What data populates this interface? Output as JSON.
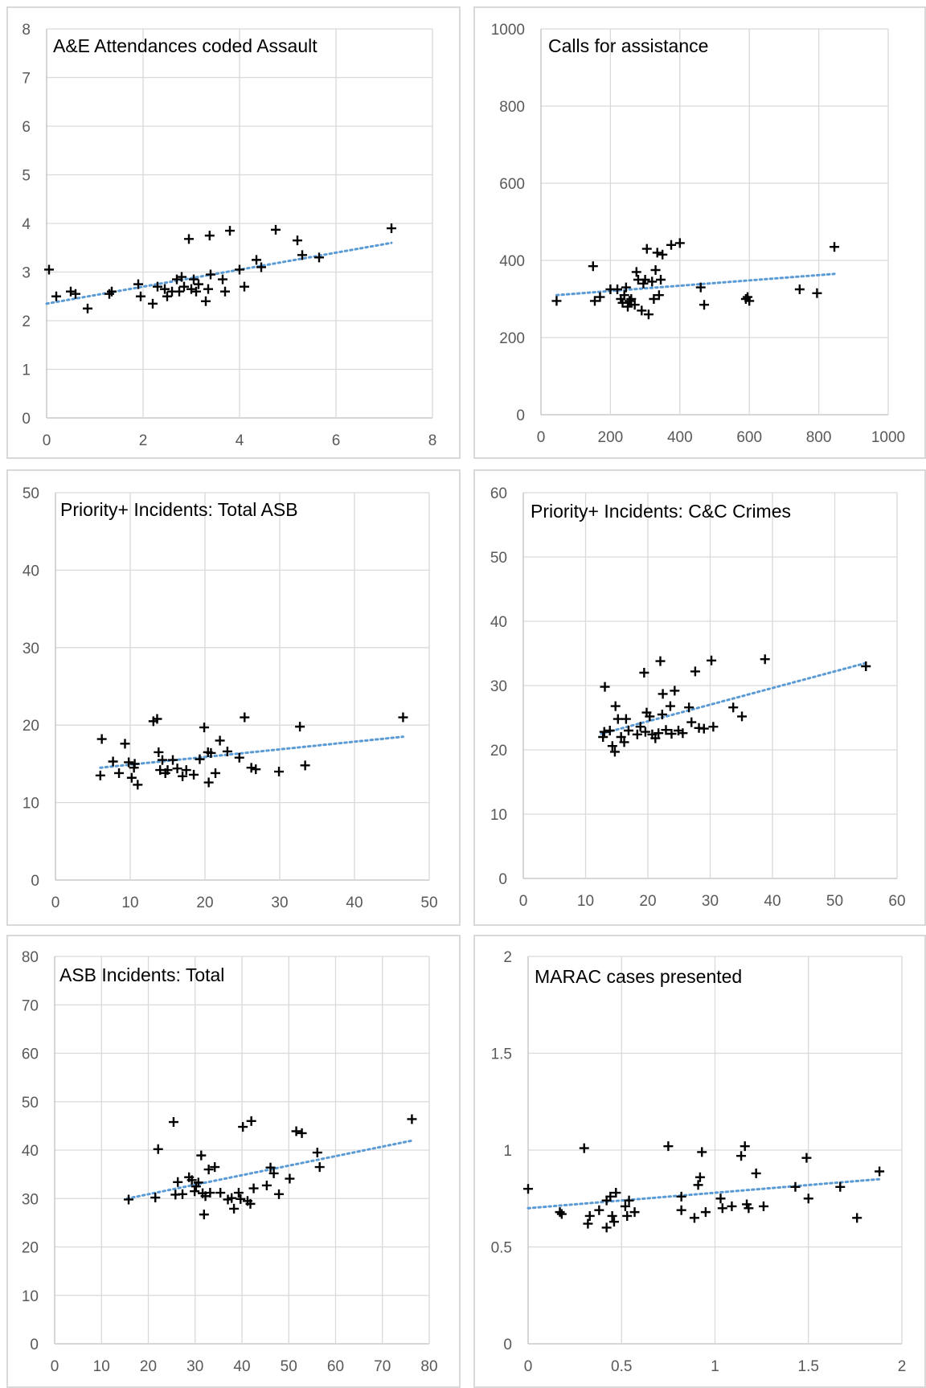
{
  "chart_data": [
    {
      "type": "scatter",
      "title": "A&E Attendances coded Assault",
      "xlim": [
        0,
        8
      ],
      "ylim": [
        0,
        8
      ],
      "xticks": [
        "0",
        "2",
        "4",
        "6",
        "8"
      ],
      "yticks": [
        "0",
        "1",
        "2",
        "3",
        "4",
        "5",
        "6",
        "7",
        "8"
      ],
      "grid": true,
      "trendline": {
        "x": [
          0,
          7.15
        ],
        "y": [
          2.35,
          3.6
        ]
      },
      "points": [
        [
          0.05,
          3.05
        ],
        [
          0.2,
          2.5
        ],
        [
          0.5,
          2.6
        ],
        [
          0.6,
          2.55
        ],
        [
          0.85,
          2.25
        ],
        [
          1.3,
          2.55
        ],
        [
          1.35,
          2.6
        ],
        [
          1.9,
          2.75
        ],
        [
          1.95,
          2.5
        ],
        [
          2.2,
          2.35
        ],
        [
          2.3,
          2.7
        ],
        [
          2.45,
          2.65
        ],
        [
          2.5,
          2.5
        ],
        [
          2.6,
          2.6
        ],
        [
          2.7,
          2.85
        ],
        [
          2.75,
          2.6
        ],
        [
          2.8,
          2.9
        ],
        [
          2.85,
          2.7
        ],
        [
          2.95,
          3.68
        ],
        [
          3.0,
          2.65
        ],
        [
          3.05,
          2.85
        ],
        [
          3.1,
          2.6
        ],
        [
          3.15,
          2.75
        ],
        [
          3.3,
          2.4
        ],
        [
          3.35,
          2.65
        ],
        [
          3.4,
          2.95
        ],
        [
          3.38,
          3.75
        ],
        [
          3.65,
          2.85
        ],
        [
          3.7,
          2.6
        ],
        [
          3.8,
          3.85
        ],
        [
          4.0,
          3.05
        ],
        [
          4.1,
          2.7
        ],
        [
          4.35,
          3.25
        ],
        [
          4.45,
          3.1
        ],
        [
          4.75,
          3.87
        ],
        [
          5.2,
          3.65
        ],
        [
          5.3,
          3.35
        ],
        [
          5.65,
          3.3
        ],
        [
          7.15,
          3.9
        ]
      ]
    },
    {
      "type": "scatter",
      "title": "Calls for assistance",
      "xlim": [
        0,
        1000
      ],
      "ylim": [
        0,
        1000
      ],
      "xticks": [
        "0",
        "200",
        "400",
        "600",
        "800",
        "1000"
      ],
      "yticks": [
        "0",
        "200",
        "400",
        "600",
        "800",
        "1000"
      ],
      "grid": true,
      "trendline": {
        "x": [
          45,
          845
        ],
        "y": [
          310,
          365
        ]
      },
      "points": [
        [
          45,
          295
        ],
        [
          150,
          385
        ],
        [
          155,
          295
        ],
        [
          170,
          305
        ],
        [
          200,
          325
        ],
        [
          220,
          325
        ],
        [
          230,
          300
        ],
        [
          235,
          290
        ],
        [
          240,
          310
        ],
        [
          245,
          330
        ],
        [
          250,
          280
        ],
        [
          255,
          295
        ],
        [
          260,
          300
        ],
        [
          270,
          285
        ],
        [
          275,
          370
        ],
        [
          280,
          350
        ],
        [
          290,
          270
        ],
        [
          295,
          340
        ],
        [
          300,
          350
        ],
        [
          305,
          430
        ],
        [
          310,
          260
        ],
        [
          320,
          345
        ],
        [
          325,
          300
        ],
        [
          330,
          375
        ],
        [
          335,
          420
        ],
        [
          340,
          310
        ],
        [
          345,
          350
        ],
        [
          350,
          415
        ],
        [
          375,
          440
        ],
        [
          400,
          445
        ],
        [
          460,
          330
        ],
        [
          470,
          285
        ],
        [
          590,
          300
        ],
        [
          595,
          305
        ],
        [
          600,
          295
        ],
        [
          745,
          325
        ],
        [
          795,
          315
        ],
        [
          845,
          435
        ]
      ]
    },
    {
      "type": "scatter",
      "title": "Priority+ Incidents: Total ASB",
      "xlim": [
        0,
        50
      ],
      "ylim": [
        0,
        50
      ],
      "xticks": [
        "0",
        "10",
        "20",
        "30",
        "40",
        "50"
      ],
      "yticks": [
        "0",
        "10",
        "20",
        "30",
        "40",
        "50"
      ],
      "grid": true,
      "trendline": {
        "x": [
          6,
          46.5
        ],
        "y": [
          14.5,
          18.5
        ]
      },
      "points": [
        [
          6,
          13.5
        ],
        [
          6.2,
          18.2
        ],
        [
          7.7,
          15.3
        ],
        [
          8.5,
          13.8
        ],
        [
          9.3,
          17.6
        ],
        [
          9.8,
          15.2
        ],
        [
          10.2,
          13.2
        ],
        [
          10.5,
          14.5
        ],
        [
          10.6,
          15
        ],
        [
          11,
          12.3
        ],
        [
          13.1,
          20.5
        ],
        [
          13.6,
          20.8
        ],
        [
          13.8,
          16.5
        ],
        [
          14,
          14.2
        ],
        [
          14.3,
          15.5
        ],
        [
          14.7,
          13.8
        ],
        [
          15,
          14.2
        ],
        [
          15.7,
          15.5
        ],
        [
          16.3,
          14.4
        ],
        [
          17,
          13.4
        ],
        [
          17.5,
          14.2
        ],
        [
          18.5,
          13.6
        ],
        [
          19.3,
          15.6
        ],
        [
          19.9,
          19.7
        ],
        [
          20.4,
          16.5
        ],
        [
          20.5,
          12.6
        ],
        [
          20.8,
          16.4
        ],
        [
          21.4,
          13.8
        ],
        [
          22,
          18
        ],
        [
          23,
          16.6
        ],
        [
          24.6,
          15.8
        ],
        [
          25.3,
          21
        ],
        [
          26.2,
          14.5
        ],
        [
          26.8,
          14.3
        ],
        [
          29.9,
          14
        ],
        [
          32.7,
          19.8
        ],
        [
          33.4,
          14.8
        ],
        [
          46.5,
          21
        ]
      ]
    },
    {
      "type": "scatter",
      "title": "Priority+ Incidents: C&C Crimes",
      "xlim": [
        0,
        60
      ],
      "ylim": [
        0,
        60
      ],
      "xticks": [
        "0",
        "10",
        "20",
        "30",
        "40",
        "50",
        "60"
      ],
      "yticks": [
        "0",
        "10",
        "20",
        "30",
        "40",
        "50",
        "60"
      ],
      "grid": true,
      "trendline": {
        "x": [
          12.5,
          55
        ],
        "y": [
          22.5,
          33.5
        ]
      },
      "points": [
        [
          12.8,
          22
        ],
        [
          13,
          22.8
        ],
        [
          13.1,
          29.8
        ],
        [
          13.9,
          23
        ],
        [
          14.3,
          20.6
        ],
        [
          14.7,
          19.7
        ],
        [
          14.8,
          26.8
        ],
        [
          15.2,
          24.8
        ],
        [
          15.7,
          22
        ],
        [
          16.2,
          21.2
        ],
        [
          16.5,
          24.8
        ],
        [
          16.9,
          23
        ],
        [
          18.3,
          22.4
        ],
        [
          18.8,
          23.6
        ],
        [
          19.4,
          32
        ],
        [
          19.6,
          22.8
        ],
        [
          19.8,
          25.8
        ],
        [
          20.3,
          25.2
        ],
        [
          20.7,
          22.4
        ],
        [
          21.2,
          21.8
        ],
        [
          21.7,
          22.6
        ],
        [
          22,
          33.8
        ],
        [
          22.3,
          25.5
        ],
        [
          22.4,
          28.7
        ],
        [
          22.9,
          23.1
        ],
        [
          23.6,
          26.8
        ],
        [
          23.8,
          22.5
        ],
        [
          24.3,
          29.2
        ],
        [
          24.9,
          23
        ],
        [
          25.6,
          22.6
        ],
        [
          26.6,
          26.6
        ],
        [
          27,
          24.3
        ],
        [
          27.6,
          32.2
        ],
        [
          28.2,
          23.4
        ],
        [
          29,
          23.3
        ],
        [
          30.2,
          33.9
        ],
        [
          30.5,
          23.6
        ],
        [
          33.7,
          26.6
        ],
        [
          35.1,
          25.2
        ],
        [
          38.8,
          34.1
        ],
        [
          55,
          33
        ]
      ]
    },
    {
      "type": "scatter",
      "title": "ASB Incidents: Total",
      "xlim": [
        0,
        80
      ],
      "ylim": [
        0,
        80
      ],
      "xticks": [
        "0",
        "10",
        "20",
        "30",
        "40",
        "50",
        "60",
        "70",
        "80"
      ],
      "yticks": [
        "0",
        "10",
        "20",
        "30",
        "40",
        "50",
        "60",
        "70",
        "80"
      ],
      "grid": true,
      "trendline": {
        "x": [
          15.5,
          76.5
        ],
        "y": [
          30,
          42
        ]
      },
      "points": [
        [
          15.8,
          29.8
        ],
        [
          21.5,
          30.2
        ],
        [
          22.1,
          40.2
        ],
        [
          25.4,
          45.8
        ],
        [
          25.8,
          30.8
        ],
        [
          26.3,
          33.4
        ],
        [
          27.3,
          30.9
        ],
        [
          28.7,
          34.4
        ],
        [
          29.3,
          33.8
        ],
        [
          29.9,
          31.5
        ],
        [
          30.2,
          32.5
        ],
        [
          30.7,
          33.3
        ],
        [
          31.3,
          38.9
        ],
        [
          31.6,
          31.1
        ],
        [
          31.9,
          26.7
        ],
        [
          32.2,
          30.5
        ],
        [
          32.9,
          36
        ],
        [
          33.2,
          31.2
        ],
        [
          34.2,
          36.5
        ],
        [
          35.4,
          31.2
        ],
        [
          37,
          29.8
        ],
        [
          37.8,
          30.1
        ],
        [
          38.3,
          27.9
        ],
        [
          39.3,
          31.2
        ],
        [
          39.7,
          29.9
        ],
        [
          40.2,
          44.8
        ],
        [
          41.2,
          29.5
        ],
        [
          41.8,
          28.9
        ],
        [
          42,
          46
        ],
        [
          42.5,
          32.1
        ],
        [
          45.3,
          32.7
        ],
        [
          46.1,
          36.4
        ],
        [
          46.8,
          35.2
        ],
        [
          47.9,
          30.9
        ],
        [
          50.2,
          34.1
        ],
        [
          51.6,
          43.9
        ],
        [
          52.8,
          43.5
        ],
        [
          56.1,
          39.5
        ],
        [
          56.6,
          36.5
        ],
        [
          76.3,
          46.4
        ]
      ]
    },
    {
      "type": "scatter",
      "title": "MARAC cases presented",
      "xlim": [
        0,
        2
      ],
      "ylim": [
        0,
        2
      ],
      "xticks": [
        "0",
        "0.5",
        "1",
        "1.5",
        "2"
      ],
      "yticks": [
        "0",
        "0.5",
        "1",
        "1.5",
        "2"
      ],
      "grid": true,
      "trendline": {
        "x": [
          0,
          1.88
        ],
        "y": [
          0.7,
          0.85
        ]
      },
      "points": [
        [
          0,
          0.8
        ],
        [
          0.17,
          0.68
        ],
        [
          0.18,
          0.67
        ],
        [
          0.3,
          1.01
        ],
        [
          0.32,
          0.62
        ],
        [
          0.33,
          0.66
        ],
        [
          0.38,
          0.69
        ],
        [
          0.42,
          0.6
        ],
        [
          0.42,
          0.74
        ],
        [
          0.44,
          0.76
        ],
        [
          0.45,
          0.66
        ],
        [
          0.46,
          0.63
        ],
        [
          0.47,
          0.78
        ],
        [
          0.52,
          0.71
        ],
        [
          0.53,
          0.66
        ],
        [
          0.54,
          0.74
        ],
        [
          0.57,
          0.68
        ],
        [
          0.75,
          1.02
        ],
        [
          0.82,
          0.69
        ],
        [
          0.82,
          0.76
        ],
        [
          0.89,
          0.65
        ],
        [
          0.91,
          0.82
        ],
        [
          0.92,
          0.86
        ],
        [
          0.93,
          0.99
        ],
        [
          0.95,
          0.68
        ],
        [
          1.03,
          0.75
        ],
        [
          1.04,
          0.7
        ],
        [
          1.09,
          0.71
        ],
        [
          1.14,
          0.97
        ],
        [
          1.16,
          1.02
        ],
        [
          1.17,
          0.72
        ],
        [
          1.18,
          0.7
        ],
        [
          1.22,
          0.88
        ],
        [
          1.26,
          0.71
        ],
        [
          1.43,
          0.81
        ],
        [
          1.49,
          0.96
        ],
        [
          1.5,
          0.75
        ],
        [
          1.67,
          0.81
        ],
        [
          1.76,
          0.65
        ],
        [
          1.88,
          0.89
        ]
      ]
    }
  ]
}
